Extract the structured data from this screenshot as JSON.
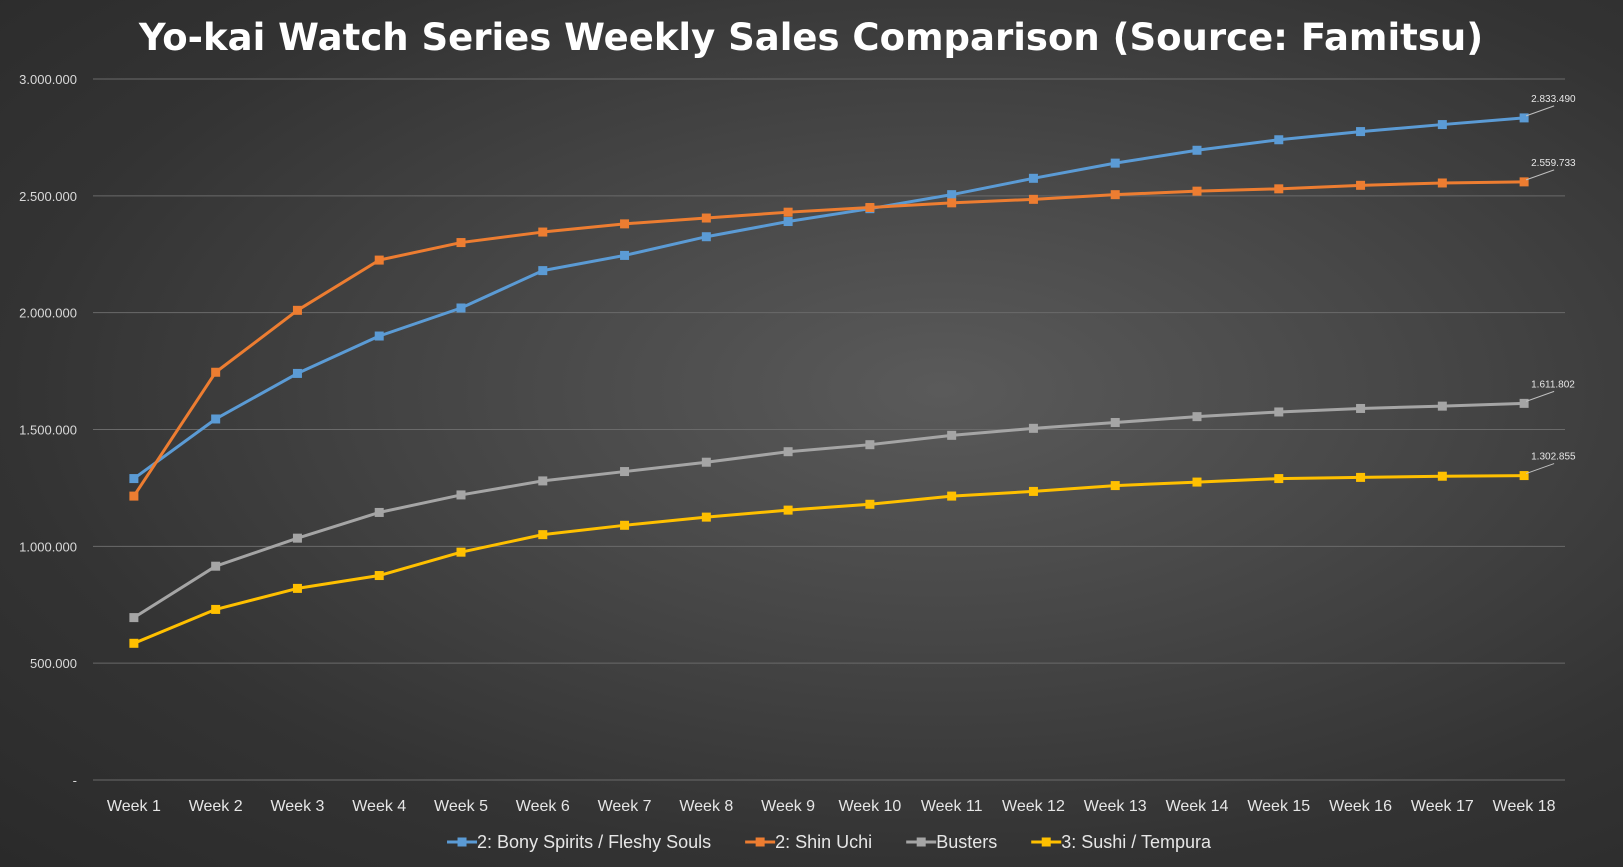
{
  "chart_data": {
    "type": "line",
    "title": "Yo-kai Watch Series Weekly Sales Comparison (Source: Famitsu)",
    "xlabel": "",
    "ylabel": "",
    "categories": [
      "Week 1",
      "Week 2",
      "Week 3",
      "Week 4",
      "Week 5",
      "Week 6",
      "Week 7",
      "Week 8",
      "Week 9",
      "Week 10",
      "Week 11",
      "Week 12",
      "Week 13",
      "Week 14",
      "Week 15",
      "Week 16",
      "Week 17",
      "Week 18"
    ],
    "ylim": [
      0,
      3000000
    ],
    "yticks": [
      {
        "value": 0,
        "label": "-"
      },
      {
        "value": 500000,
        "label": "500.000"
      },
      {
        "value": 1000000,
        "label": "1.000.000"
      },
      {
        "value": 1500000,
        "label": "1.500.000"
      },
      {
        "value": 2000000,
        "label": "2.000.000"
      },
      {
        "value": 2500000,
        "label": "2.500.000"
      },
      {
        "value": 3000000,
        "label": "3.000.000"
      }
    ],
    "grid": true,
    "legend_position": "bottom",
    "series": [
      {
        "name": "2: Bony Spirits / Fleshy Souls",
        "color": "#5b9bd5",
        "values": [
          1290000,
          1545000,
          1740000,
          1900000,
          2020000,
          2180000,
          2245000,
          2325000,
          2390000,
          2445000,
          2505000,
          2575000,
          2640000,
          2695000,
          2740000,
          2775000,
          2805000,
          2833490
        ],
        "end_label": "2.833.490"
      },
      {
        "name": "2: Shin Uchi",
        "color": "#ed7d31",
        "values": [
          1215000,
          1745000,
          2010000,
          2225000,
          2300000,
          2345000,
          2380000,
          2405000,
          2430000,
          2450000,
          2470000,
          2485000,
          2505000,
          2520000,
          2530000,
          2545000,
          2555000,
          2559733
        ],
        "end_label": "2.559.733"
      },
      {
        "name": "Busters",
        "color": "#a5a5a5",
        "values": [
          695000,
          915000,
          1035000,
          1145000,
          1220000,
          1280000,
          1320000,
          1360000,
          1405000,
          1435000,
          1475000,
          1505000,
          1530000,
          1555000,
          1575000,
          1590000,
          1600000,
          1611802
        ],
        "end_label": "1.611.802"
      },
      {
        "name": "3: Sushi / Tempura",
        "color": "#ffc000",
        "values": [
          585000,
          730000,
          820000,
          875000,
          975000,
          1050000,
          1090000,
          1125000,
          1155000,
          1180000,
          1215000,
          1235000,
          1260000,
          1275000,
          1290000,
          1295000,
          1300000,
          1302855
        ],
        "end_label": "1.302.855"
      }
    ]
  }
}
